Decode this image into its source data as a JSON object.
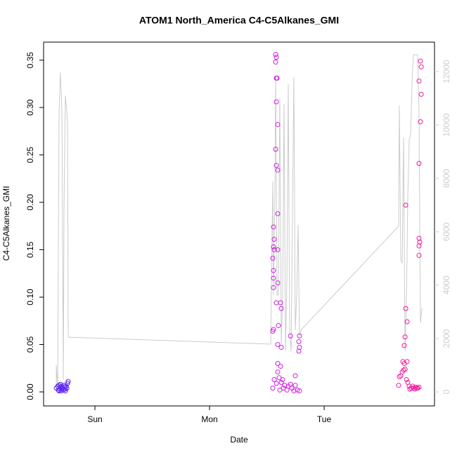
{
  "chart_data": {
    "type": "scatter",
    "title": "ATOM1 North_America C4-C5Alkanes_GMI",
    "x_label": "Date",
    "y_label": "C4-C5Alkanes_GMI",
    "xlim": [
      0.552,
      3.963
    ],
    "xticks": [
      {
        "value": 1,
        "label": "Sun"
      },
      {
        "value": 2,
        "label": "Mon"
      },
      {
        "value": 3,
        "label": "Tue"
      }
    ],
    "ylim": [
      -0.0148,
      0.369
    ],
    "yticks": [
      {
        "value": 0,
        "label": "0.00"
      },
      {
        "value": 0.05,
        "label": "0.05"
      },
      {
        "value": 0.1,
        "label": "0.10"
      },
      {
        "value": 0.15,
        "label": "0.15"
      },
      {
        "value": 0.2,
        "label": "0.20"
      },
      {
        "value": 0.25,
        "label": "0.25"
      },
      {
        "value": 0.3,
        "label": "0.30"
      },
      {
        "value": 0.35,
        "label": "0.35"
      }
    ],
    "y2lim": [
      -526,
      13105
    ],
    "y2ticks": [
      0,
      2000,
      4000,
      6000,
      8000,
      10000,
      12000
    ],
    "y2_color": "#cccccc",
    "series": [
      {
        "type": "line",
        "axis": "y2",
        "color": "#cccccc",
        "x": [
          0.663,
          0.663,
          0.675,
          0.687,
          0.699,
          0.712,
          0.724,
          0.73,
          0.742,
          0.755,
          0.761,
          0.767,
          0.773,
          2.534,
          2.54,
          2.552,
          2.558,
          2.571,
          2.577,
          2.589,
          2.601,
          2.613,
          2.626,
          2.638,
          2.65,
          2.663,
          2.675,
          2.687,
          2.699,
          2.712,
          2.724,
          2.736,
          2.748,
          2.761,
          2.773,
          2.785,
          2.798,
          3.65,
          3.656,
          3.669,
          3.681,
          3.693,
          3.706,
          3.718,
          3.73,
          3.742,
          3.755,
          3.767,
          3.779,
          3.816,
          3.828,
          3.84,
          3.853,
          3.859
        ],
        "values": [
          0,
          1000,
          210,
          10470,
          11970,
          10470,
          470,
          6790,
          11100,
          10470,
          10080,
          2050,
          2050,
          1790,
          4160,
          7890,
          3630,
          7840,
          11790,
          3630,
          3630,
          11000,
          1790,
          3630,
          10790,
          1530,
          4160,
          11530,
          2320,
          1530,
          6790,
          11790,
          2320,
          3630,
          6260,
          2050,
          2320,
          6210,
          10740,
          4950,
          4820,
          9530,
          1530,
          3370,
          7320,
          9420,
          9680,
          11530,
          12630,
          12630,
          10470,
          2580,
          3110,
          3110
        ]
      },
      {
        "type": "scatter",
        "color": "#5a1ef0",
        "x": [
          0.663,
          0.675,
          0.681,
          0.687,
          0.693,
          0.699,
          0.706,
          0.712,
          0.718,
          0.724,
          0.73,
          0.736,
          0.742,
          0.748,
          0.755,
          0.761,
          0.767,
          0.687,
          0.699,
          0.712,
          0.724,
          0.742
        ],
        "values": [
          0.004,
          0.006,
          0.002,
          0.007,
          0.003,
          0.005,
          0.001,
          0.006,
          0.004,
          0.002,
          0.007,
          0.005,
          0.003,
          0.006,
          0.004,
          0.009,
          0.011,
          0.001,
          0.008,
          0.003,
          0.002,
          0.001
        ]
      },
      {
        "type": "scatter",
        "color": "#d21ee6",
        "x": [
          2.577,
          2.583,
          2.577,
          2.583,
          2.589,
          2.583,
          2.595,
          2.577,
          2.583,
          2.595,
          2.595,
          2.558,
          2.564,
          2.558,
          2.564,
          2.595,
          2.552,
          2.558,
          2.558,
          2.595,
          2.558,
          2.583,
          2.62,
          2.626,
          2.601,
          2.558,
          2.552,
          2.595,
          2.626,
          2.706,
          2.785,
          2.779,
          2.785,
          2.779,
          2.595,
          2.62,
          2.595,
          2.564,
          2.626,
          2.656,
          2.687,
          2.718,
          2.748,
          2.552,
          2.613,
          2.644,
          2.675,
          2.706,
          2.736,
          2.767,
          2.785,
          2.583,
          2.607,
          2.638,
          2.748
        ],
        "values": [
          0.356,
          0.353,
          0.348,
          0.331,
          0.331,
          0.306,
          0.282,
          0.256,
          0.239,
          0.234,
          0.188,
          0.174,
          0.161,
          0.153,
          0.15,
          0.15,
          0.141,
          0.128,
          0.12,
          0.115,
          0.11,
          0.094,
          0.094,
          0.088,
          0.07,
          0.066,
          0.064,
          0.05,
          0.047,
          0.059,
          0.059,
          0.053,
          0.047,
          0.043,
          0.03,
          0.027,
          0.021,
          0.013,
          0.01,
          0.007,
          0.006,
          0.004,
          0.007,
          0.004,
          0.002,
          0.004,
          0.002,
          0.008,
          0.001,
          0.002,
          0.001,
          0.009,
          0.015,
          0.013,
          0.017
        ]
      },
      {
        "type": "scatter",
        "color": "#f01a9c",
        "x": [
          3.712,
          3.84,
          3.847,
          3.828,
          3.847,
          3.84,
          3.828,
          3.828,
          3.834,
          3.828,
          3.828,
          3.712,
          3.724,
          3.706,
          3.699,
          3.687,
          3.699,
          3.724,
          3.669,
          3.656,
          3.681,
          3.693,
          3.706,
          3.718,
          3.73,
          3.742,
          3.761,
          3.779,
          3.798,
          3.816,
          3.748,
          3.773,
          3.791,
          3.81,
          3.828,
          3.65
        ],
        "values": [
          0.197,
          0.349,
          0.343,
          0.328,
          0.314,
          0.285,
          0.241,
          0.162,
          0.158,
          0.154,
          0.144,
          0.088,
          0.074,
          0.058,
          0.049,
          0.032,
          0.03,
          0.032,
          0.017,
          0.016,
          0.021,
          0.023,
          0.024,
          0.013,
          0.01,
          0.006,
          0.004,
          0.004,
          0.005,
          0.004,
          0.003,
          0.006,
          0.003,
          0.004,
          0.005,
          0.007
        ]
      }
    ]
  }
}
